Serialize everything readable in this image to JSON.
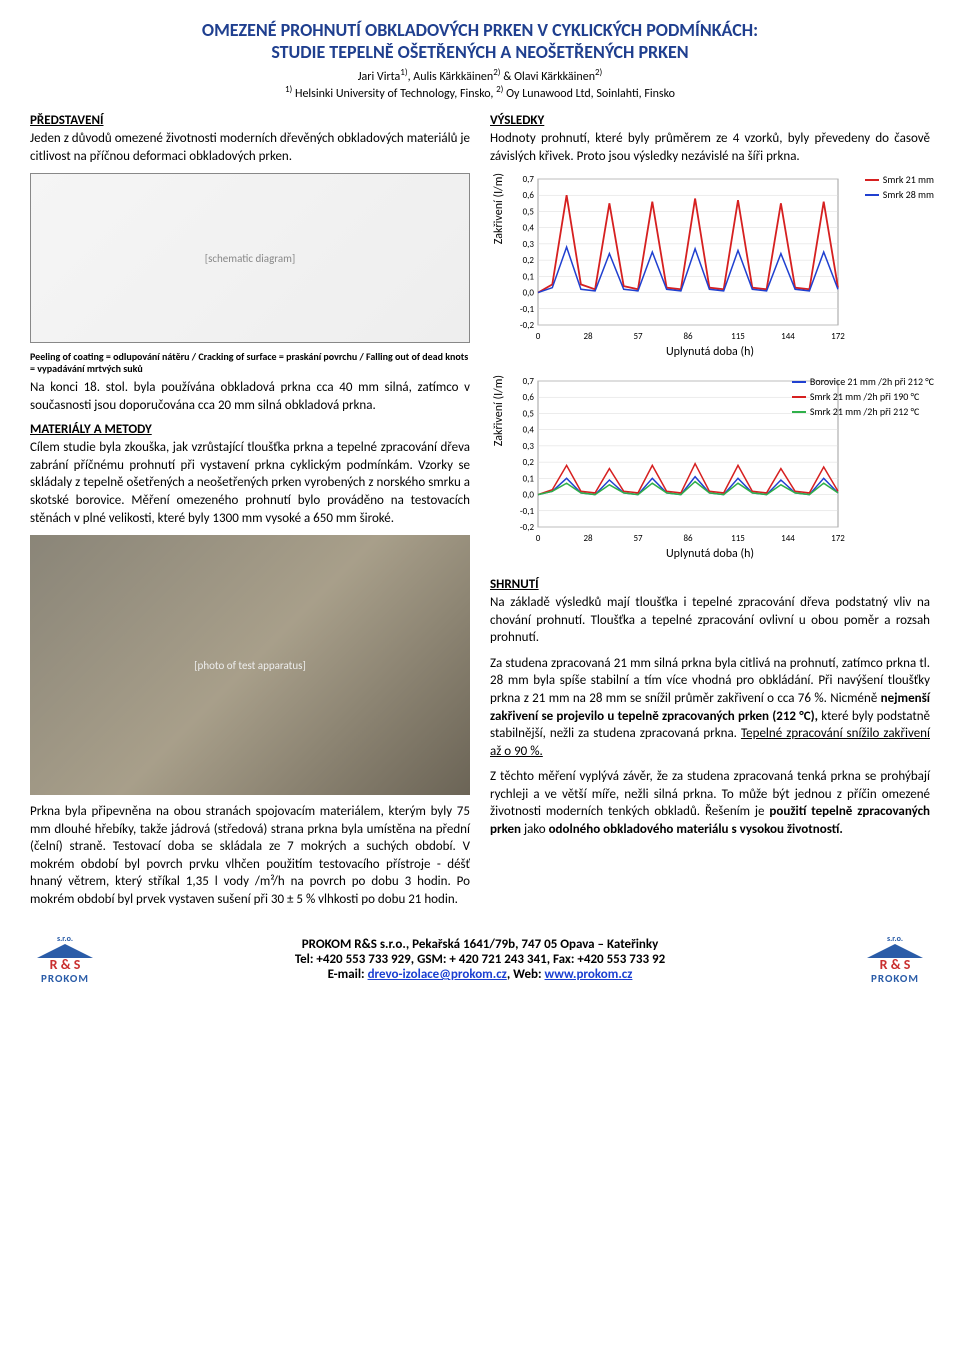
{
  "title_line1": "OMEZENÉ PROHNUTÍ OBKLADOVÝCH PRKEN V CYKLICKÝCH PODMÍNKÁCH:",
  "title_line2": "STUDIE TEPELNĚ OŠETŘENÝCH A NEOŠETŘENÝCH PRKEN",
  "title_color": "#1f3f8f",
  "authors": "Jari Virta  , Aulis Kärkkäinen   & Olavi Kärkkäinen",
  "author_sup1": "1)",
  "author_sup2": "2)",
  "author_sup3": "2)",
  "affil_sup1": "1)",
  "affil_sup2": "2)",
  "affiliations": "Helsinki University of Technology, Finsko,    Oy Lunawood Ltd, Soinlahti, Finsko",
  "left": {
    "intro_head": "PŘEDSTAVENÍ",
    "intro_text": "Jeden z důvodů omezené životnosti moderních dřevěných obkladových materiálů je citlivost na příčnou deformaci obkladových prken.",
    "diagram_caption": "Peeling of coating = odlupování nátěru / Cracking of surface = praskání povrchu / Falling out of dead knots = vypadávání mrtvých suků",
    "para2": "Na konci 18. stol. byla používána obkladová prkna cca 40 mm silná, zatímco v současnosti jsou doporučována cca 20 mm silná obkladová prkna.",
    "mat_head": "MATERIÁLY A METODY",
    "mat_text": "Cílem studie byla zkouška, jak vzrůstající tloušťka prkna a tepelné zpracování dřeva zabrání příčnému prohnutí při vystavení prkna cyklickým podmínkám. Vzorky se skládaly z tepelně ošetřených a neošetřených prken vyrobených z norského smrku a skotské borovice. Měření omezeného prohnutí bylo prováděno na testovacích stěnách v plné velikosti, které byly 1300 mm vysoké a 650 mm široké.",
    "para3": "Prkna byla připevněna na obou stranách spojovacím materiálem, kterým byly 75 mm dlouhé hřebíky, takže jádrová (středová) strana prkna byla umístěna na přední (čelní) straně. Testovací doba se skládala ze 7 mokrých a suchých období. V mokrém období byl povrch prvku vlhčen použitím testovacího přístroje - déšť hnaný větrem, který stříkal 1,35 l vody /m²/h na povrch po dobu 3 hodin. Po mokrém období byl prvek vystaven sušení při 30 ± 5 % vlhkosti po dobu 21 hodin."
  },
  "right": {
    "res_head": "VÝSLEDKY",
    "res_text": "Hodnoty prohnutí, které byly průměrem ze 4 vzorků, byly převedeny do časově závislých křivek. Proto jsou výsledky nezávislé na šíři prkna.",
    "sum_head": "SHRNUTÍ",
    "sum_p1": "Na základě výsledků mají tloušťka i tepelné zpracování dřeva podstatný vliv na chování prohnutí. Tloušťka a tepelné zpracování ovlivní u obou poměr a rozsah prohnutí.",
    "sum_p2a": "Za studena zpracovaná 21 mm silná prkna byla citlivá na prohnutí, zatímco prkna tl. 28 mm byla spíše stabilní a tím více vhodná pro obkládání. Při navýšení tloušťky prkna z 21 mm na 28 mm se snížil průměr zakřivení o cca 76 %. Nicméně ",
    "sum_p2b": "nejmenší zakřivení se projevilo u tepelně zpracovaných prken (212 °C),",
    "sum_p2c": " které byly podstatně stabilnější, nežli za studena zpracovaná prkna. ",
    "sum_p2d": "Tepelné zpracování snížilo zakřivení až o 90 %.",
    "sum_p3a": "Z těchto měření vyplývá závěr, že za studena zpracovaná tenká prkna se prohýbají rychleji a ve větší míře, nežli silná prkna. To může být jednou z příčin omezené životnosti moderních tenkých obkladů. Řešením je ",
    "sum_p3b": "použití tepelně zpracovaných prken",
    "sum_p3c": " jako ",
    "sum_p3d": "odolného obkladového materiálu s vysokou životností."
  },
  "chart1": {
    "ylabel": "Zakřivení (I/m)",
    "xlabel": "Uplynutá doba (h)",
    "xticks": [
      "0",
      "28",
      "57",
      "86",
      "115",
      "144",
      "172"
    ],
    "yticks": [
      "-0,2",
      "-0,1",
      "0,0",
      "0,1",
      "0,2",
      "0,3",
      "0,4",
      "0,5",
      "0,6",
      "0,7"
    ],
    "ymin": -0.2,
    "ymax": 0.7,
    "grid_color": "#d9d9d9",
    "series": [
      {
        "name": "Smrk 21 mm",
        "color": "#d62020",
        "width": 1.8,
        "y": [
          0,
          0.05,
          0.6,
          0.05,
          0.02,
          0.55,
          0.04,
          0.02,
          0.56,
          0.03,
          0.02,
          0.58,
          0.03,
          0.02,
          0.57,
          0.03,
          0.02,
          0.55,
          0.03,
          0.02,
          0.56,
          0.03
        ]
      },
      {
        "name": "Smrk 28 mm",
        "color": "#2040d0",
        "width": 1.5,
        "y": [
          0,
          0.03,
          0.28,
          0.02,
          0.01,
          0.24,
          0.02,
          0.01,
          0.25,
          0.02,
          0.01,
          0.27,
          0.02,
          0.01,
          0.26,
          0.02,
          0.01,
          0.24,
          0.02,
          0.01,
          0.25,
          0.02
        ]
      }
    ]
  },
  "chart2": {
    "ylabel": "Zakřivení (I/m)",
    "xlabel": "Uplynutá doba (h)",
    "xticks": [
      "0",
      "28",
      "57",
      "86",
      "115",
      "144",
      "172"
    ],
    "yticks": [
      "-0,2",
      "-0,1",
      "0,0",
      "0,1",
      "0,2",
      "0,3",
      "0,4",
      "0,5",
      "0,6",
      "0,7"
    ],
    "ymin": -0.2,
    "ymax": 0.7,
    "grid_color": "#d9d9d9",
    "series": [
      {
        "name": "Borovice 21 mm /2h při 212 °C",
        "color": "#2040d0",
        "width": 1.5,
        "y": [
          0,
          0.02,
          0.1,
          0.01,
          0.0,
          0.09,
          0.01,
          0.0,
          0.1,
          0.01,
          0.0,
          0.11,
          0.01,
          0.0,
          0.1,
          0.01,
          0.0,
          0.09,
          0.01,
          0.0,
          0.1,
          0.01
        ]
      },
      {
        "name": "Smrk 21 mm /2h při 190 °C",
        "color": "#d62020",
        "width": 1.5,
        "y": [
          0,
          0.03,
          0.18,
          0.02,
          0.01,
          0.16,
          0.02,
          0.01,
          0.18,
          0.02,
          0.01,
          0.19,
          0.02,
          0.01,
          0.18,
          0.02,
          0.01,
          0.16,
          0.02,
          0.01,
          0.17,
          0.02
        ]
      },
      {
        "name": "Smrk 21 mm /2h při 212 °C",
        "color": "#2fb04a",
        "width": 1.5,
        "y": [
          0,
          0.02,
          0.07,
          0.01,
          0.0,
          0.06,
          0.01,
          0.0,
          0.07,
          0.01,
          0.0,
          0.08,
          0.01,
          0.0,
          0.07,
          0.01,
          0.0,
          0.06,
          0.01,
          0.0,
          0.07,
          0.01
        ]
      }
    ]
  },
  "footer": {
    "line1": "PROKOM R&S s.r.o., Pekařská 1641/79b, 747 05 Opava – Kateřinky",
    "line2a": "Tel: +420  553 733 929, ",
    "line2b": "GSM:",
    "line2c": " + 420 721 243 341, ",
    "line2d": "Fax:",
    "line2e": " +420  553 733 92",
    "line3a": "E-mail: ",
    "email": "drevo-izolace@prokom.cz",
    "line3b": ", ",
    "line3c": "Web:",
    "web": "www.prokom.cz",
    "logo_sro": "s.r.o.",
    "logo_rs": "R & S",
    "logo_name": "PROKOM"
  }
}
